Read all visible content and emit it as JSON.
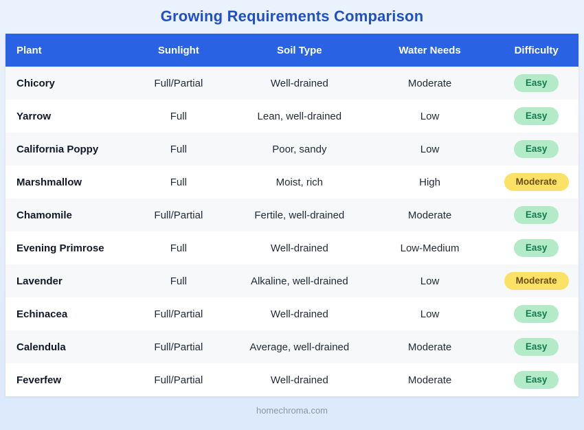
{
  "page": {
    "title": "Growing Requirements Comparison",
    "footer": "homechroma.com"
  },
  "colors": {
    "title_blue": "#2250c4",
    "header_background": "#2a62e4",
    "header_text": "#ffffff",
    "row_stripe": "#f7f8fa",
    "badge_easy_background": "#b3ebc8",
    "badge_easy_text": "#157a4f",
    "badge_moderate_background": "#fbe266",
    "badge_moderate_text": "#6d4f12",
    "page_background": "#e3edfc"
  },
  "table": {
    "columns": [
      {
        "label": "Plant"
      },
      {
        "label": "Sunlight"
      },
      {
        "label": "Soil Type"
      },
      {
        "label": "Water Needs"
      },
      {
        "label": "Difficulty"
      }
    ],
    "rows": [
      {
        "plant": "Chicory",
        "sunlight": "Full/Partial",
        "soil": "Well-drained",
        "water": "Moderate",
        "difficulty": "Easy"
      },
      {
        "plant": "Yarrow",
        "sunlight": "Full",
        "soil": "Lean, well-drained",
        "water": "Low",
        "difficulty": "Easy"
      },
      {
        "plant": "California Poppy",
        "sunlight": "Full",
        "soil": "Poor, sandy",
        "water": "Low",
        "difficulty": "Easy"
      },
      {
        "plant": "Marshmallow",
        "sunlight": "Full",
        "soil": "Moist, rich",
        "water": "High",
        "difficulty": "Moderate"
      },
      {
        "plant": "Chamomile",
        "sunlight": "Full/Partial",
        "soil": "Fertile, well-drained",
        "water": "Moderate",
        "difficulty": "Easy"
      },
      {
        "plant": "Evening Primrose",
        "sunlight": "Full",
        "soil": "Well-drained",
        "water": "Low-Medium",
        "difficulty": "Easy"
      },
      {
        "plant": "Lavender",
        "sunlight": "Full",
        "soil": "Alkaline, well-drained",
        "water": "Low",
        "difficulty": "Moderate"
      },
      {
        "plant": "Echinacea",
        "sunlight": "Full/Partial",
        "soil": "Well-drained",
        "water": "Low",
        "difficulty": "Easy"
      },
      {
        "plant": "Calendula",
        "sunlight": "Full/Partial",
        "soil": "Average, well-drained",
        "water": "Moderate",
        "difficulty": "Easy"
      },
      {
        "plant": "Feverfew",
        "sunlight": "Full/Partial",
        "soil": "Well-drained",
        "water": "Moderate",
        "difficulty": "Easy"
      }
    ]
  }
}
